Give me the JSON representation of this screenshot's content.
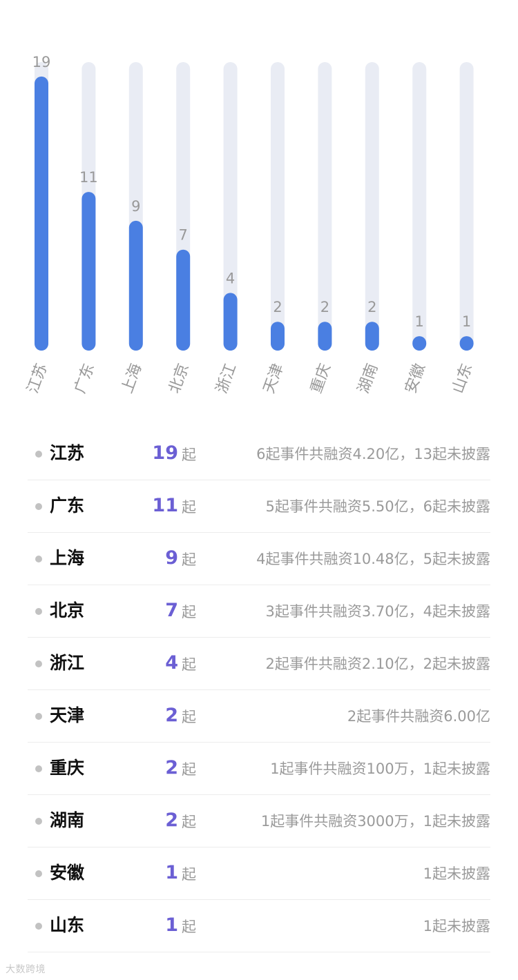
{
  "chart_data": {
    "type": "bar",
    "categories": [
      "江苏",
      "广东",
      "上海",
      "北京",
      "浙江",
      "天津",
      "重庆",
      "湖南",
      "安徽",
      "山东"
    ],
    "values": [
      19,
      11,
      9,
      7,
      4,
      2,
      2,
      2,
      1,
      1
    ],
    "ylim": [
      0,
      20
    ],
    "grid": false,
    "colors": {
      "bar": "#4a7fe2",
      "track": "#e9ecf4",
      "label": "#999999"
    }
  },
  "unit_label": "起",
  "rows": [
    {
      "province": "江苏",
      "count": "19",
      "desc": "6起事件共融资4.20亿，13起未披露"
    },
    {
      "province": "广东",
      "count": "11",
      "desc": "5起事件共融资5.50亿，6起未披露"
    },
    {
      "province": "上海",
      "count": "9",
      "desc": "4起事件共融资10.48亿，5起未披露"
    },
    {
      "province": "北京",
      "count": "7",
      "desc": "3起事件共融资3.70亿，4起未披露"
    },
    {
      "province": "浙江",
      "count": "4",
      "desc": "2起事件共融资2.10亿，2起未披露"
    },
    {
      "province": "天津",
      "count": "2",
      "desc": "2起事件共融资6.00亿"
    },
    {
      "province": "重庆",
      "count": "2",
      "desc": "1起事件共融资100万，1起未披露"
    },
    {
      "province": "湖南",
      "count": "2",
      "desc": "1起事件共融资3000万，1起未披露"
    },
    {
      "province": "安徽",
      "count": "1",
      "desc": "1起未披露"
    },
    {
      "province": "山东",
      "count": "1",
      "desc": "1起未披露"
    }
  ],
  "watermark": "大数跨境"
}
